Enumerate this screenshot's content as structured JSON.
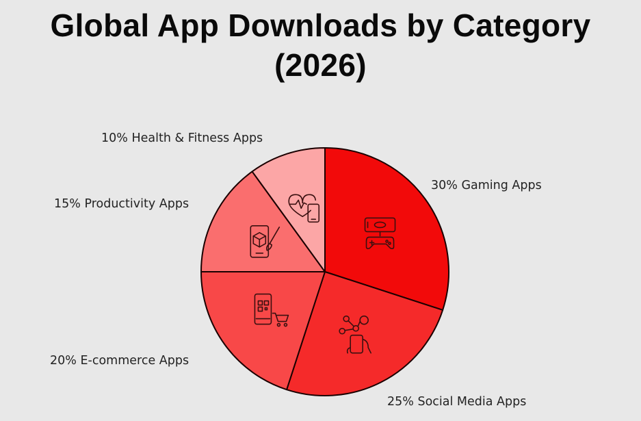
{
  "title_line1": "Global App Downloads by Category",
  "title_line2": "(2026)",
  "chart_data": {
    "type": "pie",
    "title": "Global App Downloads by Category (2026)",
    "unit": "%",
    "slices": [
      {
        "label": "30% Gaming Apps",
        "category": "Gaming Apps",
        "value": 30,
        "color": "#f20a0a",
        "icon": "gamepad-phone-icon"
      },
      {
        "label": "25% Social Media Apps",
        "category": "Social Media Apps",
        "value": 25,
        "color": "#f52a2a",
        "icon": "social-network-hand-icon"
      },
      {
        "label": "20% E-commerce Apps",
        "category": "E-commerce Apps",
        "value": 20,
        "color": "#f84848",
        "icon": "qr-phone-cart-icon"
      },
      {
        "label": "15% Productivity Apps",
        "category": "Productivity Apps",
        "value": 15,
        "color": "#fa6e6e",
        "icon": "phone-cube-brush-icon"
      },
      {
        "label": "10% Health & Fitness Apps",
        "category": "Health & Fitness Apps",
        "value": 10,
        "color": "#fca6a6",
        "icon": "heart-pulse-phone-icon"
      }
    ],
    "start_angle": "12 o'clock",
    "direction": "clockwise",
    "legend": "none",
    "grid": false
  }
}
